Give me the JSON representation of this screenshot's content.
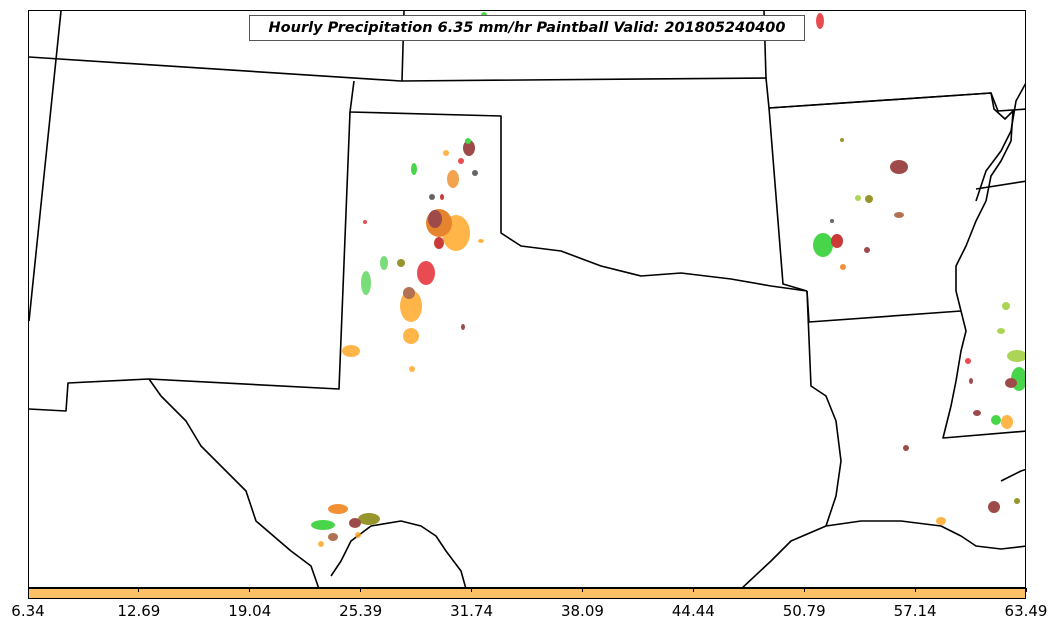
{
  "title": "Hourly Precipitation 6.35 mm/hr Paintball Valid: 201805240400",
  "colors": {
    "colorbar_fill": "#FDC067",
    "state_lines": "#000000",
    "paintball_palette": [
      "#FFA520",
      "#F0780A",
      "#E3242B",
      "#C20E0E",
      "#8B2323",
      "#A0522D",
      "#808000",
      "#9ACD32",
      "#22CC22",
      "#5CD65C",
      "#444444"
    ]
  },
  "colorbar": {
    "ticks": [
      "6.34",
      "12.69",
      "19.04",
      "25.39",
      "31.74",
      "38.09",
      "44.44",
      "50.79",
      "57.14",
      "63.49"
    ]
  }
}
